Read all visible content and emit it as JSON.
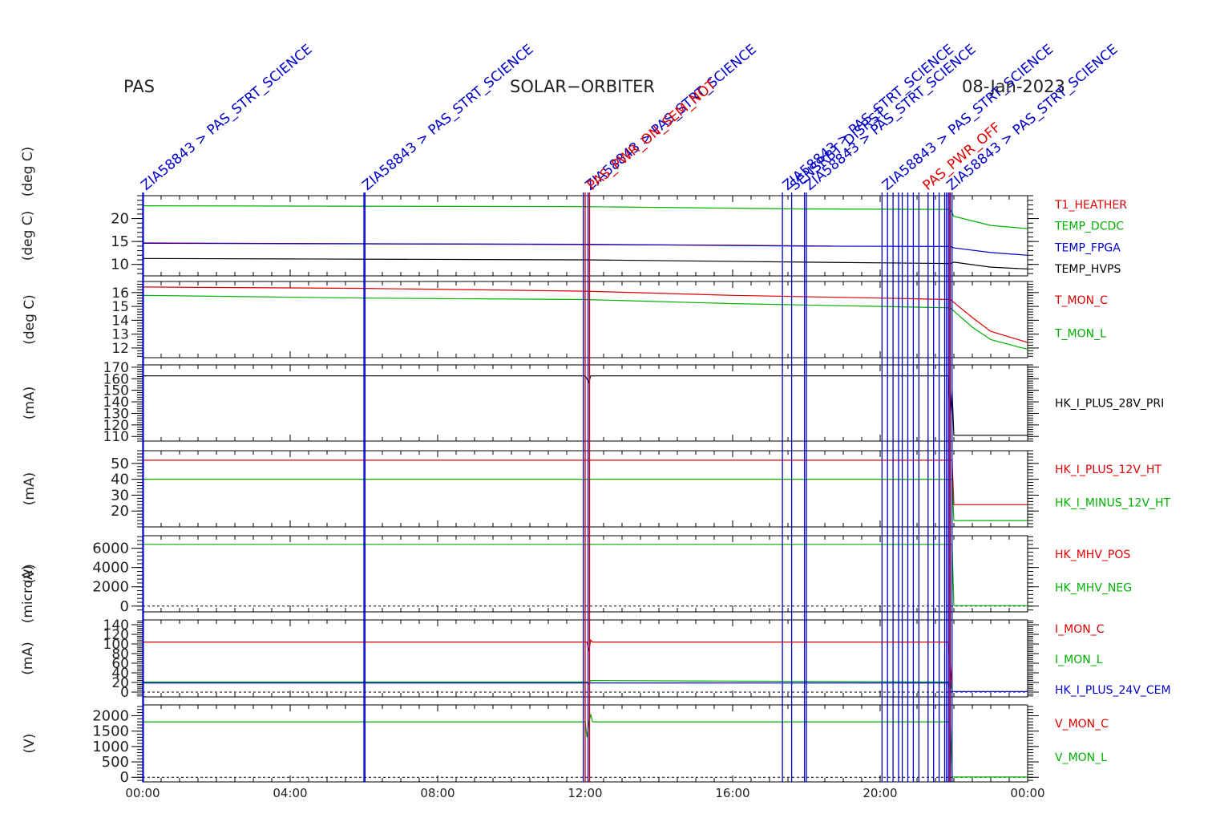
{
  "header": {
    "left": "PAS",
    "center": "SOLAR−ORBITER",
    "right": "08-Jan-2023"
  },
  "colors": {
    "red": "#e00000",
    "green": "#00b000",
    "blue": "#0000c8",
    "black": "#000000"
  },
  "chart_data": {
    "type": "line",
    "x_axis": {
      "unit": "hours",
      "range": [
        0,
        24
      ],
      "tick_labels": [
        "00:00",
        "04:00",
        "08:00",
        "12:00",
        "16:00",
        "20:00",
        "00:00"
      ]
    },
    "event_markers": {
      "labels": [
        {
          "time": 0.0,
          "text": "ZIA58843 > PAS_STRT_SCIENCE",
          "color": "blue"
        },
        {
          "time": 6.0,
          "text": "ZIA58843 > PAS_STRT_SCIENCE",
          "color": "blue"
        },
        {
          "time": 12.05,
          "text": "ZIA58843 > PAS_STRT_SCIENCE",
          "color": "blue"
        },
        {
          "time": 12.1,
          "text": "PAS_PWR_ON_SEM_NOT",
          "color": "red"
        },
        {
          "time": 17.4,
          "text": "ZIA58843 > PAS_STRT_SCIENCE",
          "color": "blue"
        },
        {
          "time": 17.6,
          "text": "SENSRBT_DISRST",
          "color": "blue"
        },
        {
          "time": 18.0,
          "text": "ZIA58843 > PAS_STRT_SCIENCE",
          "color": "blue"
        },
        {
          "time": 20.1,
          "text": "ZIA58843 > PAS_STRT_SCIENCE",
          "color": "blue"
        },
        {
          "time": 21.2,
          "text": "PAS_PWR_OFF",
          "color": "red"
        },
        {
          "time": 21.85,
          "text": "ZIA58843 > PAS_STRT_SCIENCE",
          "color": "blue"
        }
      ],
      "blue_lines": [
        0.0,
        0.02,
        6.0,
        6.03,
        11.95,
        12.08,
        17.35,
        17.6,
        17.95,
        18.0,
        20.05,
        20.2,
        20.35,
        20.5,
        20.6,
        20.75,
        20.9,
        21.05,
        21.3,
        21.45,
        21.6,
        21.75,
        21.8,
        21.85,
        21.9,
        21.95
      ],
      "red_lines": [
        12.0,
        12.12,
        21.88
      ]
    },
    "panels": [
      {
        "ylabel": "(deg C)",
        "ylabel2": "(deg C)",
        "ylim": [
          7.5,
          25
        ],
        "ticks": [
          10,
          15,
          20
        ],
        "series": [
          {
            "name": "T1_HEATHER",
            "color": "red",
            "points": [
              [
                0,
                14.7
              ],
              [
                16,
                14.2
              ],
              [
                18.7,
                14.0
              ]
            ]
          },
          {
            "name": "TEMP_DCDC",
            "color": "green",
            "points": [
              [
                0,
                22.8
              ],
              [
                12,
                22.6
              ],
              [
                18,
                22.1
              ],
              [
                21.9,
                22.0
              ],
              [
                22.0,
                20.5
              ],
              [
                23,
                18.5
              ],
              [
                24,
                17.8
              ]
            ]
          },
          {
            "name": "TEMP_FPGA",
            "color": "blue",
            "points": [
              [
                0,
                14.6
              ],
              [
                12,
                14.4
              ],
              [
                18,
                14.0
              ],
              [
                21.9,
                13.9
              ],
              [
                22.0,
                13.6
              ],
              [
                23,
                12.6
              ],
              [
                24,
                12.0
              ]
            ]
          },
          {
            "name": "TEMP_HVPS",
            "color": "black",
            "points": [
              [
                0,
                11.3
              ],
              [
                4,
                11.2
              ],
              [
                12,
                11.0
              ],
              [
                18,
                10.5
              ],
              [
                21.9,
                10.2
              ],
              [
                22.0,
                10.5
              ],
              [
                23,
                9.4
              ],
              [
                24,
                9.0
              ]
            ]
          }
        ]
      },
      {
        "ylabel": "(deg C)",
        "ylim": [
          11.3,
          16.8
        ],
        "ticks": [
          12,
          13,
          14,
          15,
          16
        ],
        "series": [
          {
            "name": "T_MON_C",
            "color": "red",
            "points": [
              [
                0,
                16.4
              ],
              [
                6,
                16.3
              ],
              [
                12,
                16.1
              ],
              [
                16,
                15.8
              ],
              [
                20,
                15.6
              ],
              [
                21.9,
                15.5
              ],
              [
                22.5,
                14.2
              ],
              [
                23,
                13.2
              ],
              [
                24,
                12.4
              ]
            ]
          },
          {
            "name": "T_MON_L",
            "color": "green",
            "points": [
              [
                0,
                15.8
              ],
              [
                6,
                15.6
              ],
              [
                12,
                15.5
              ],
              [
                16,
                15.2
              ],
              [
                20,
                15.0
              ],
              [
                21.9,
                14.9
              ],
              [
                22.5,
                13.5
              ],
              [
                23,
                12.6
              ],
              [
                24,
                11.9
              ]
            ]
          }
        ]
      },
      {
        "ylabel": "(mA)",
        "ylim": [
          106,
          172
        ],
        "ticks": [
          110,
          120,
          130,
          140,
          150,
          160,
          170
        ],
        "series": [
          {
            "name": "HK_I_PLUS_28V_PRI",
            "color": "black",
            "points": [
              [
                0,
                162.5
              ],
              [
                12,
                162.5
              ],
              [
                12.1,
                157
              ],
              [
                12.15,
                162.5
              ],
              [
                21.85,
                162.5
              ],
              [
                21.9,
                128
              ],
              [
                21.95,
                150
              ],
              [
                22.0,
                111
              ],
              [
                24,
                111
              ]
            ]
          }
        ]
      },
      {
        "ylabel": "(mA)",
        "ylim": [
          10,
          58
        ],
        "ticks": [
          20,
          30,
          40,
          50
        ],
        "series": [
          {
            "name": "HK_I_PLUS_12V_HT",
            "color": "red",
            "points": [
              [
                0,
                52
              ],
              [
                21.95,
                52
              ],
              [
                22.0,
                24
              ],
              [
                24,
                24
              ]
            ]
          },
          {
            "name": "HK_I_MINUS_12V_HT",
            "color": "green",
            "points": [
              [
                0,
                40
              ],
              [
                21.95,
                40
              ],
              [
                22.0,
                14
              ],
              [
                24,
                14
              ]
            ]
          }
        ]
      },
      {
        "ylabel": "(V)",
        "ylim": [
          -600,
          7300
        ],
        "ticks": [
          0,
          2000,
          4000,
          6000
        ],
        "series": [
          {
            "name": "HK_MHV_POS",
            "color": "red",
            "points": []
          },
          {
            "name": "HK_MHV_NEG",
            "color": "green",
            "points": [
              [
                0,
                6400
              ],
              [
                21.95,
                6400
              ],
              [
                22.0,
                50
              ],
              [
                24,
                50
              ]
            ]
          }
        ]
      },
      {
        "ylabel": "(microA)",
        "ylabel2": "(mA)",
        "ylim": [
          -10,
          150
        ],
        "ticks": [
          0,
          20,
          40,
          60,
          80,
          100,
          120,
          140
        ],
        "series": [
          {
            "name": "I_MON_C",
            "color": "red",
            "points": [
              [
                0,
                104
              ],
              [
                12.05,
                104
              ],
              [
                12.1,
                85
              ],
              [
                12.15,
                108
              ],
              [
                12.2,
                104
              ],
              [
                21.85,
                104
              ],
              [
                21.9,
                60
              ],
              [
                21.95,
                5
              ]
            ]
          },
          {
            "name": "I_MON_L",
            "color": "green",
            "points": [
              [
                0,
                21
              ],
              [
                12.05,
                21
              ],
              [
                12.1,
                18
              ],
              [
                12.15,
                24
              ],
              [
                21.9,
                21
              ],
              [
                21.95,
                2
              ]
            ]
          },
          {
            "name": "HK_I_PLUS_24V_CEM",
            "color": "blue",
            "points": [
              [
                0,
                19
              ],
              [
                21.85,
                19
              ],
              [
                21.9,
                1
              ],
              [
                24,
                1
              ]
            ]
          }
        ]
      },
      {
        "ylabel": "(V)",
        "ylim": [
          -150,
          2350
        ],
        "ticks": [
          0,
          500,
          1000,
          1500,
          2000
        ],
        "series": [
          {
            "name": "V_MON_C",
            "color": "red",
            "points": []
          },
          {
            "name": "V_MON_L",
            "color": "green",
            "points": [
              [
                0,
                1800
              ],
              [
                12.0,
                1800
              ],
              [
                12.05,
                1300
              ],
              [
                12.1,
                1750
              ],
              [
                12.15,
                2050
              ],
              [
                12.2,
                1800
              ],
              [
                21.9,
                1800
              ],
              [
                21.95,
                10
              ],
              [
                24,
                10
              ]
            ]
          }
        ]
      }
    ]
  }
}
